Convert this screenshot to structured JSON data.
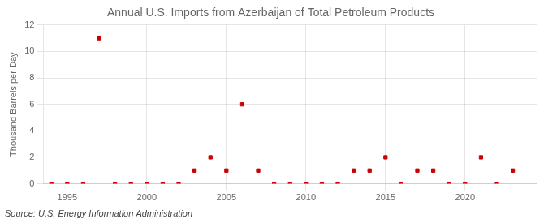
{
  "chart_data": {
    "type": "scatter",
    "title": "Annual U.S. Imports from Azerbaijan of Total Petroleum Products",
    "ylabel": "Thousand Barrels per Day",
    "annotations": [
      "Source: U.S. Energy Information Administration"
    ],
    "x": [
      1994,
      1995,
      1996,
      1997,
      1998,
      1999,
      2000,
      2001,
      2002,
      2003,
      2004,
      2005,
      2006,
      2007,
      2008,
      2009,
      2010,
      2011,
      2012,
      2013,
      2014,
      2015,
      2016,
      2017,
      2018,
      2019,
      2020,
      2021,
      2022,
      2023
    ],
    "values": [
      0,
      0,
      0,
      11,
      0,
      0,
      0,
      0,
      0,
      1,
      2,
      1,
      6,
      1,
      0,
      0,
      0,
      0,
      0,
      1,
      1,
      2,
      0,
      1,
      1,
      0,
      0,
      2,
      0,
      1
    ],
    "color": "#cc0000",
    "marker": "square",
    "xlim": [
      1993.5,
      2024.5
    ],
    "xticks": [
      1995,
      2000,
      2005,
      2010,
      2015,
      2020
    ],
    "ylim": [
      0,
      12
    ],
    "yticks": [
      0,
      2,
      4,
      6,
      8,
      10,
      12
    ],
    "grid": true
  }
}
